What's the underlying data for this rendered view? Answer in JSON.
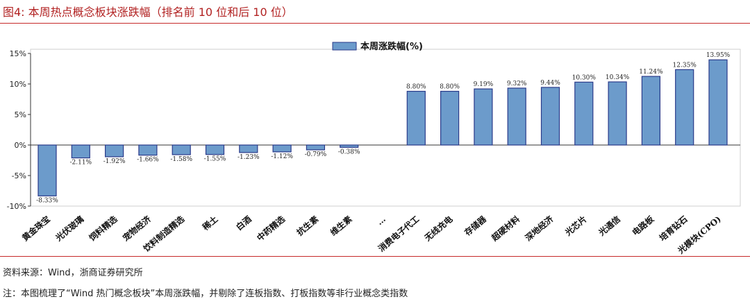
{
  "header": {
    "title": "图4:  本周热点概念板块涨跌幅（排名前 10 位和后 10 位）"
  },
  "footer": {
    "source": "资料来源：Wind，浙商证券研究所",
    "note": "注：本图梳理了“Wind 热门概念板块”本周涨跌幅，并剔除了连板指数、打板指数等非行业概念类指数"
  },
  "colors": {
    "bar_fill": "#6c9bcb",
    "bar_stroke": "#2a3a8a",
    "title_red": "#b22222",
    "rule_red": "#c62828"
  },
  "chart_data": {
    "type": "bar",
    "legend": {
      "label": "本周涨跌幅(%)",
      "placement": "top-center"
    },
    "ylim": [
      -10,
      15
    ],
    "yticks": [
      15,
      10,
      5,
      0,
      -5,
      -10
    ],
    "ytick_labels": [
      "15%",
      "10%",
      "5%",
      "0%",
      "-5%",
      "-10%"
    ],
    "grid": false,
    "categories": [
      "黄金珠宝",
      "光伏玻璃",
      "饲料精选",
      "宠物经济",
      "饮料制造精选",
      "稀土",
      "白酒",
      "中药精选",
      "抗生素",
      "维生素",
      "…",
      "消费电子代工",
      "无线充电",
      "存储器",
      "超硬材料",
      "深地经济",
      "光芯片",
      "光通信",
      "电路板",
      "培育钻石",
      "光模块(CPO)"
    ],
    "values": [
      -8.33,
      -2.11,
      -1.92,
      -1.66,
      -1.58,
      -1.55,
      -1.23,
      -1.12,
      -0.79,
      -0.38,
      null,
      8.8,
      8.8,
      9.19,
      9.32,
      9.44,
      10.3,
      10.34,
      11.24,
      12.35,
      13.95
    ],
    "data_labels": [
      "-8.33%",
      "-2.11%",
      "-1.92%",
      "-1.66%",
      "-1.58%",
      "-1.55%",
      "-1.23%",
      "-1.12%",
      "-0.79%",
      "-0.38%",
      "",
      "8.80%",
      "8.80%",
      "9.19%",
      "9.32%",
      "9.44%",
      "10.30%",
      "10.34%",
      "11.24%",
      "12.35%",
      "13.95%"
    ]
  }
}
